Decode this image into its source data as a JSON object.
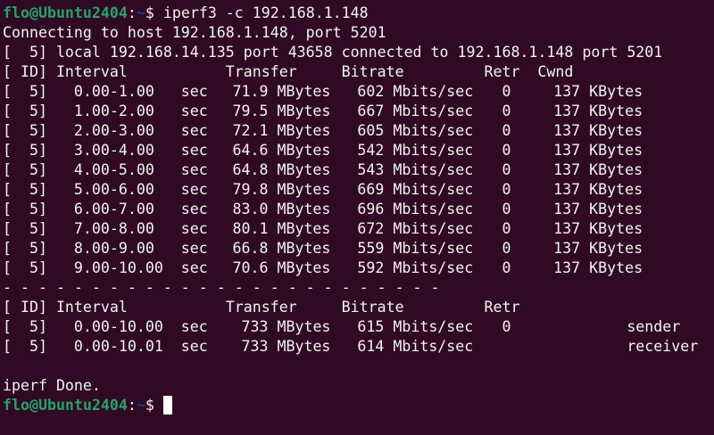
{
  "colors": {
    "background": "#300a24",
    "prompt_user": "#26a269",
    "prompt_path": "#12488b",
    "text": "#f2f2f2"
  },
  "prompt": {
    "user_host": "flo@Ubuntu2404",
    "sep": ":",
    "path": "~",
    "symbol": "$"
  },
  "command": "iperf3 -c 192.168.1.148",
  "connecting": "Connecting to host 192.168.1.148, port 5201",
  "local": "[  5] local 192.168.14.135 port 43658 connected to 192.168.1.148 port 5201",
  "header": {
    "id": "[ ID]",
    "interval": "Interval",
    "transfer": "Transfer",
    "bitrate": "Bitrate",
    "retr": "Retr",
    "cwnd": "Cwnd"
  },
  "rows": [
    {
      "id": "[  5]",
      "interval": "0.00-1.00",
      "unit": "sec",
      "transfer": "71.9 MBytes",
      "bitrate": "602 Mbits/sec",
      "retr": "0",
      "cwnd": "137 KBytes"
    },
    {
      "id": "[  5]",
      "interval": "1.00-2.00",
      "unit": "sec",
      "transfer": "79.5 MBytes",
      "bitrate": "667 Mbits/sec",
      "retr": "0",
      "cwnd": "137 KBytes"
    },
    {
      "id": "[  5]",
      "interval": "2.00-3.00",
      "unit": "sec",
      "transfer": "72.1 MBytes",
      "bitrate": "605 Mbits/sec",
      "retr": "0",
      "cwnd": "137 KBytes"
    },
    {
      "id": "[  5]",
      "interval": "3.00-4.00",
      "unit": "sec",
      "transfer": "64.6 MBytes",
      "bitrate": "542 Mbits/sec",
      "retr": "0",
      "cwnd": "137 KBytes"
    },
    {
      "id": "[  5]",
      "interval": "4.00-5.00",
      "unit": "sec",
      "transfer": "64.8 MBytes",
      "bitrate": "543 Mbits/sec",
      "retr": "0",
      "cwnd": "137 KBytes"
    },
    {
      "id": "[  5]",
      "interval": "5.00-6.00",
      "unit": "sec",
      "transfer": "79.8 MBytes",
      "bitrate": "669 Mbits/sec",
      "retr": "0",
      "cwnd": "137 KBytes"
    },
    {
      "id": "[  5]",
      "interval": "6.00-7.00",
      "unit": "sec",
      "transfer": "83.0 MBytes",
      "bitrate": "696 Mbits/sec",
      "retr": "0",
      "cwnd": "137 KBytes"
    },
    {
      "id": "[  5]",
      "interval": "7.00-8.00",
      "unit": "sec",
      "transfer": "80.1 MBytes",
      "bitrate": "672 Mbits/sec",
      "retr": "0",
      "cwnd": "137 KBytes"
    },
    {
      "id": "[  5]",
      "interval": "8.00-9.00",
      "unit": "sec",
      "transfer": "66.8 MBytes",
      "bitrate": "559 Mbits/sec",
      "retr": "0",
      "cwnd": "137 KBytes"
    },
    {
      "id": "[  5]",
      "interval": "9.00-10.00",
      "unit": "sec",
      "transfer": "70.6 MBytes",
      "bitrate": "592 Mbits/sec",
      "retr": "0",
      "cwnd": "137 KBytes"
    }
  ],
  "separator": "- - - - - - - - - - - - - - - - - - - - - - - - -",
  "summary_header": {
    "id": "[ ID]",
    "interval": "Interval",
    "transfer": "Transfer",
    "bitrate": "Bitrate",
    "retr": "Retr"
  },
  "summary": [
    {
      "id": "[  5]",
      "interval": "0.00-10.00",
      "unit": "sec",
      "transfer": "733 MBytes",
      "bitrate": "615 Mbits/sec",
      "retr": "0",
      "role": "sender"
    },
    {
      "id": "[  5]",
      "interval": "0.00-10.01",
      "unit": "sec",
      "transfer": "733 MBytes",
      "bitrate": "614 Mbits/sec",
      "retr": "",
      "role": "receiver"
    }
  ],
  "done": "iperf Done."
}
